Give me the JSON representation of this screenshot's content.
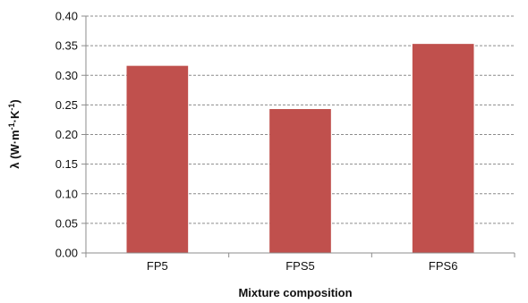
{
  "chart_data": {
    "type": "bar",
    "title": "",
    "xlabel": "Mixture composition",
    "ylabel_parts": {
      "prefix": "λ (W·m",
      "exp1": "-1",
      "mid": "·K",
      "exp2": "-1",
      "suffix": ")"
    },
    "categories": [
      "FP5",
      "FPS5",
      "FPS6"
    ],
    "values": [
      0.316,
      0.243,
      0.353
    ],
    "ylim": [
      0,
      0.4
    ],
    "yticks": [
      0.0,
      0.05,
      0.1,
      0.15,
      0.2,
      0.25,
      0.3,
      0.35,
      0.4
    ],
    "ytick_labels": [
      "0.00",
      "0.05",
      "0.10",
      "0.15",
      "0.20",
      "0.25",
      "0.30",
      "0.35",
      "0.40"
    ],
    "grid": true,
    "legend": false,
    "colors": {
      "bar": "#C0504D",
      "grid": "#8c8c8c",
      "axis": "#8c8c8c"
    }
  }
}
